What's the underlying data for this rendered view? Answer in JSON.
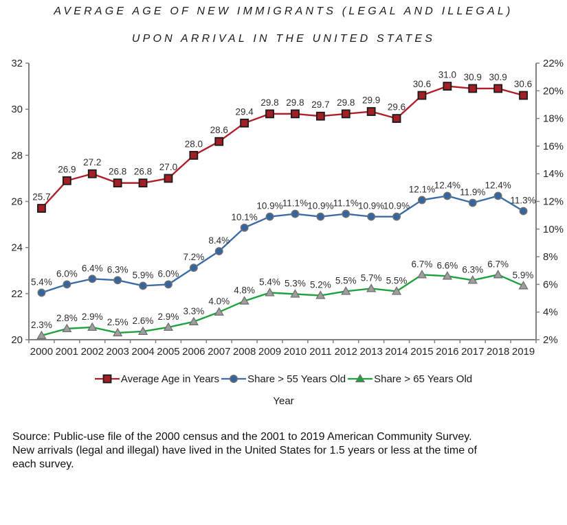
{
  "source": {
    "lines": [
      "Source: Public-use file of the 2000 census and the 2001 to 2019 American Community Survey.",
      "New arrivals (legal and illegal) have lived in the United States for 1.5 years or less at the time of",
      "each survey."
    ]
  },
  "chart_data": {
    "type": "line",
    "title_lines": [
      "AVERAGE AGE OF NEW IMMIGRANTS (LEGAL AND ILLEGAL)",
      "UPON ARRIVAL IN THE UNITED STATES"
    ],
    "xlabel": "Year",
    "legend_position": "bottom",
    "grid": false,
    "x_categories": [
      "2000",
      "2001",
      "2002",
      "2003",
      "2004",
      "2005",
      "2006",
      "2007",
      "2008",
      "2009",
      "2010",
      "2011",
      "2012",
      "2013",
      "2014",
      "2015",
      "2016",
      "2017",
      "2018",
      "2019"
    ],
    "axes": {
      "left": {
        "min": 20,
        "max": 32,
        "tick_values": [
          32,
          30,
          28,
          26,
          24,
          22,
          20
        ],
        "tick_labels": [
          "32",
          "30",
          "28",
          "26",
          "24",
          "22",
          "20"
        ]
      },
      "right": {
        "min": 2,
        "max": 22,
        "tick_values": [
          22,
          20,
          18,
          16,
          14,
          12,
          10,
          8,
          6,
          4,
          2
        ],
        "tick_labels": [
          "22%",
          "20%",
          "18%",
          "16%",
          "14%",
          "12%",
          "10%",
          "8%",
          "6%",
          "4%",
          "2%"
        ]
      }
    },
    "axis_color": "#808080",
    "series": [
      {
        "name": "Average Age in Years",
        "axis": "left",
        "marker": "square",
        "line_color": "#B01E28",
        "marker_fill": "#A31F26",
        "marker_stroke": "#1a1a1a",
        "label_dy": -12,
        "values": [
          25.7,
          26.9,
          27.2,
          26.8,
          26.8,
          27.0,
          28.0,
          28.6,
          29.4,
          29.8,
          29.8,
          29.7,
          29.8,
          29.9,
          29.6,
          30.6,
          31.0,
          30.9,
          30.9,
          30.6
        ],
        "labels": [
          "25.7",
          "26.9",
          "27.2",
          "26.8",
          "26.8",
          "27.0",
          "28.0",
          "28.6",
          "29.4",
          "29.8",
          "29.8",
          "29.7",
          "29.8",
          "29.9",
          "29.6",
          "30.6",
          "31.0",
          "30.9",
          "30.9",
          "30.6"
        ]
      },
      {
        "name": "Share > 55 Years Old",
        "axis": "right",
        "marker": "circle",
        "line_color": "#3B6CA8",
        "marker_fill": "#35659E",
        "marker_stroke": "#707070",
        "label_dy": -11,
        "values": [
          5.4,
          6.0,
          6.4,
          6.3,
          5.9,
          6.0,
          7.2,
          8.4,
          10.1,
          10.9,
          11.1,
          10.9,
          11.1,
          10.9,
          10.9,
          12.1,
          12.4,
          11.9,
          12.4,
          11.3
        ],
        "labels": [
          "5.4%",
          "6.0%",
          "6.4%",
          "6.3%",
          "5.9%",
          "6.0%",
          "7.2%",
          "8.4%",
          "10.1%",
          "10.9%",
          "11.1%",
          "10.9%",
          "11.1%",
          "10.9%",
          "10.9%",
          "12.1%",
          "12.4%",
          "11.9%",
          "12.4%",
          "11.3%"
        ]
      },
      {
        "name": "Share > 65 Years Old",
        "axis": "right",
        "marker": "triangle",
        "line_color": "#1CA23C",
        "marker_fill": "#9E9E9E",
        "marker_stroke": "#707070",
        "legend_marker_fill": "#1CA23C",
        "label_dy": -11,
        "values": [
          2.3,
          2.8,
          2.9,
          2.5,
          2.6,
          2.9,
          3.3,
          4.0,
          4.8,
          5.4,
          5.3,
          5.2,
          5.5,
          5.7,
          5.5,
          6.7,
          6.6,
          6.3,
          6.7,
          5.9
        ],
        "labels": [
          "2.3%",
          "2.8%",
          "2.9%",
          "2.5%",
          "2.6%",
          "2.9%",
          "3.3%",
          "4.0%",
          "4.8%",
          "5.4%",
          "5.3%",
          "5.2%",
          "5.5%",
          "5.7%",
          "5.5%",
          "6.7%",
          "6.6%",
          "6.3%",
          "6.7%",
          "5.9%"
        ]
      }
    ]
  }
}
